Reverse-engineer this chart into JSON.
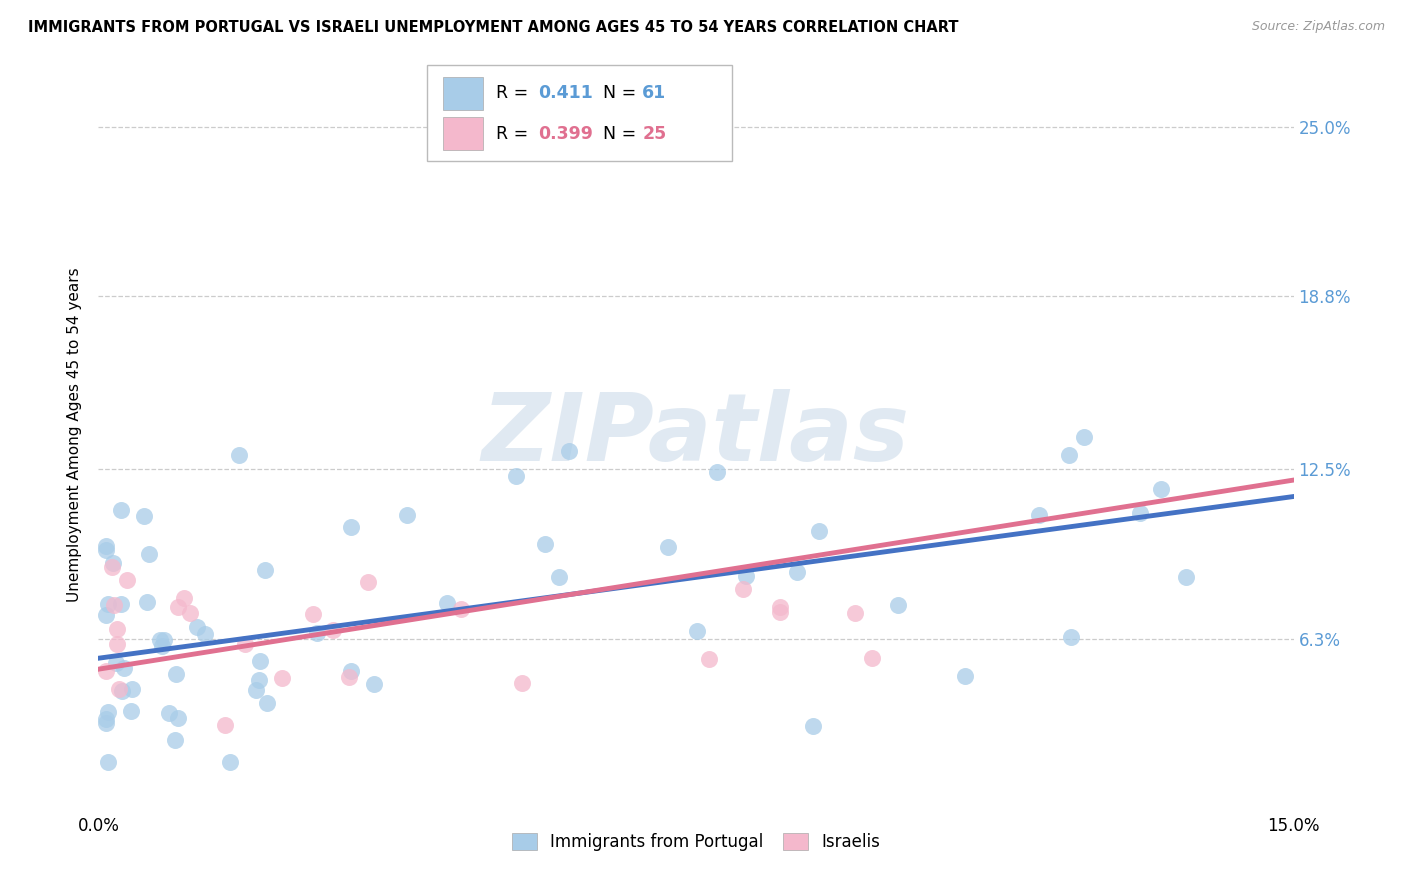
{
  "title": "IMMIGRANTS FROM PORTUGAL VS ISRAELI UNEMPLOYMENT AMONG AGES 45 TO 54 YEARS CORRELATION CHART",
  "source": "Source: ZipAtlas.com",
  "ylabel": "Unemployment Among Ages 45 to 54 years",
  "xlim": [
    0.0,
    0.15
  ],
  "ylim": [
    0.0,
    0.275
  ],
  "watermark": "ZIPatlas",
  "legend1_label": "Immigrants from Portugal",
  "legend2_label": "Israelis",
  "R1": "0.411",
  "N1": "61",
  "R2": "0.399",
  "N2": "25",
  "blue_scatter_color": "#a8cce8",
  "pink_scatter_color": "#f4b8cc",
  "line_blue": "#4472c4",
  "line_pink": "#e07090",
  "tick_color": "#5b9bd5",
  "y_tick_vals": [
    0.063,
    0.125,
    0.188,
    0.25
  ],
  "y_tick_labels": [
    "6.3%",
    "12.5%",
    "18.8%",
    "25.0%"
  ]
}
